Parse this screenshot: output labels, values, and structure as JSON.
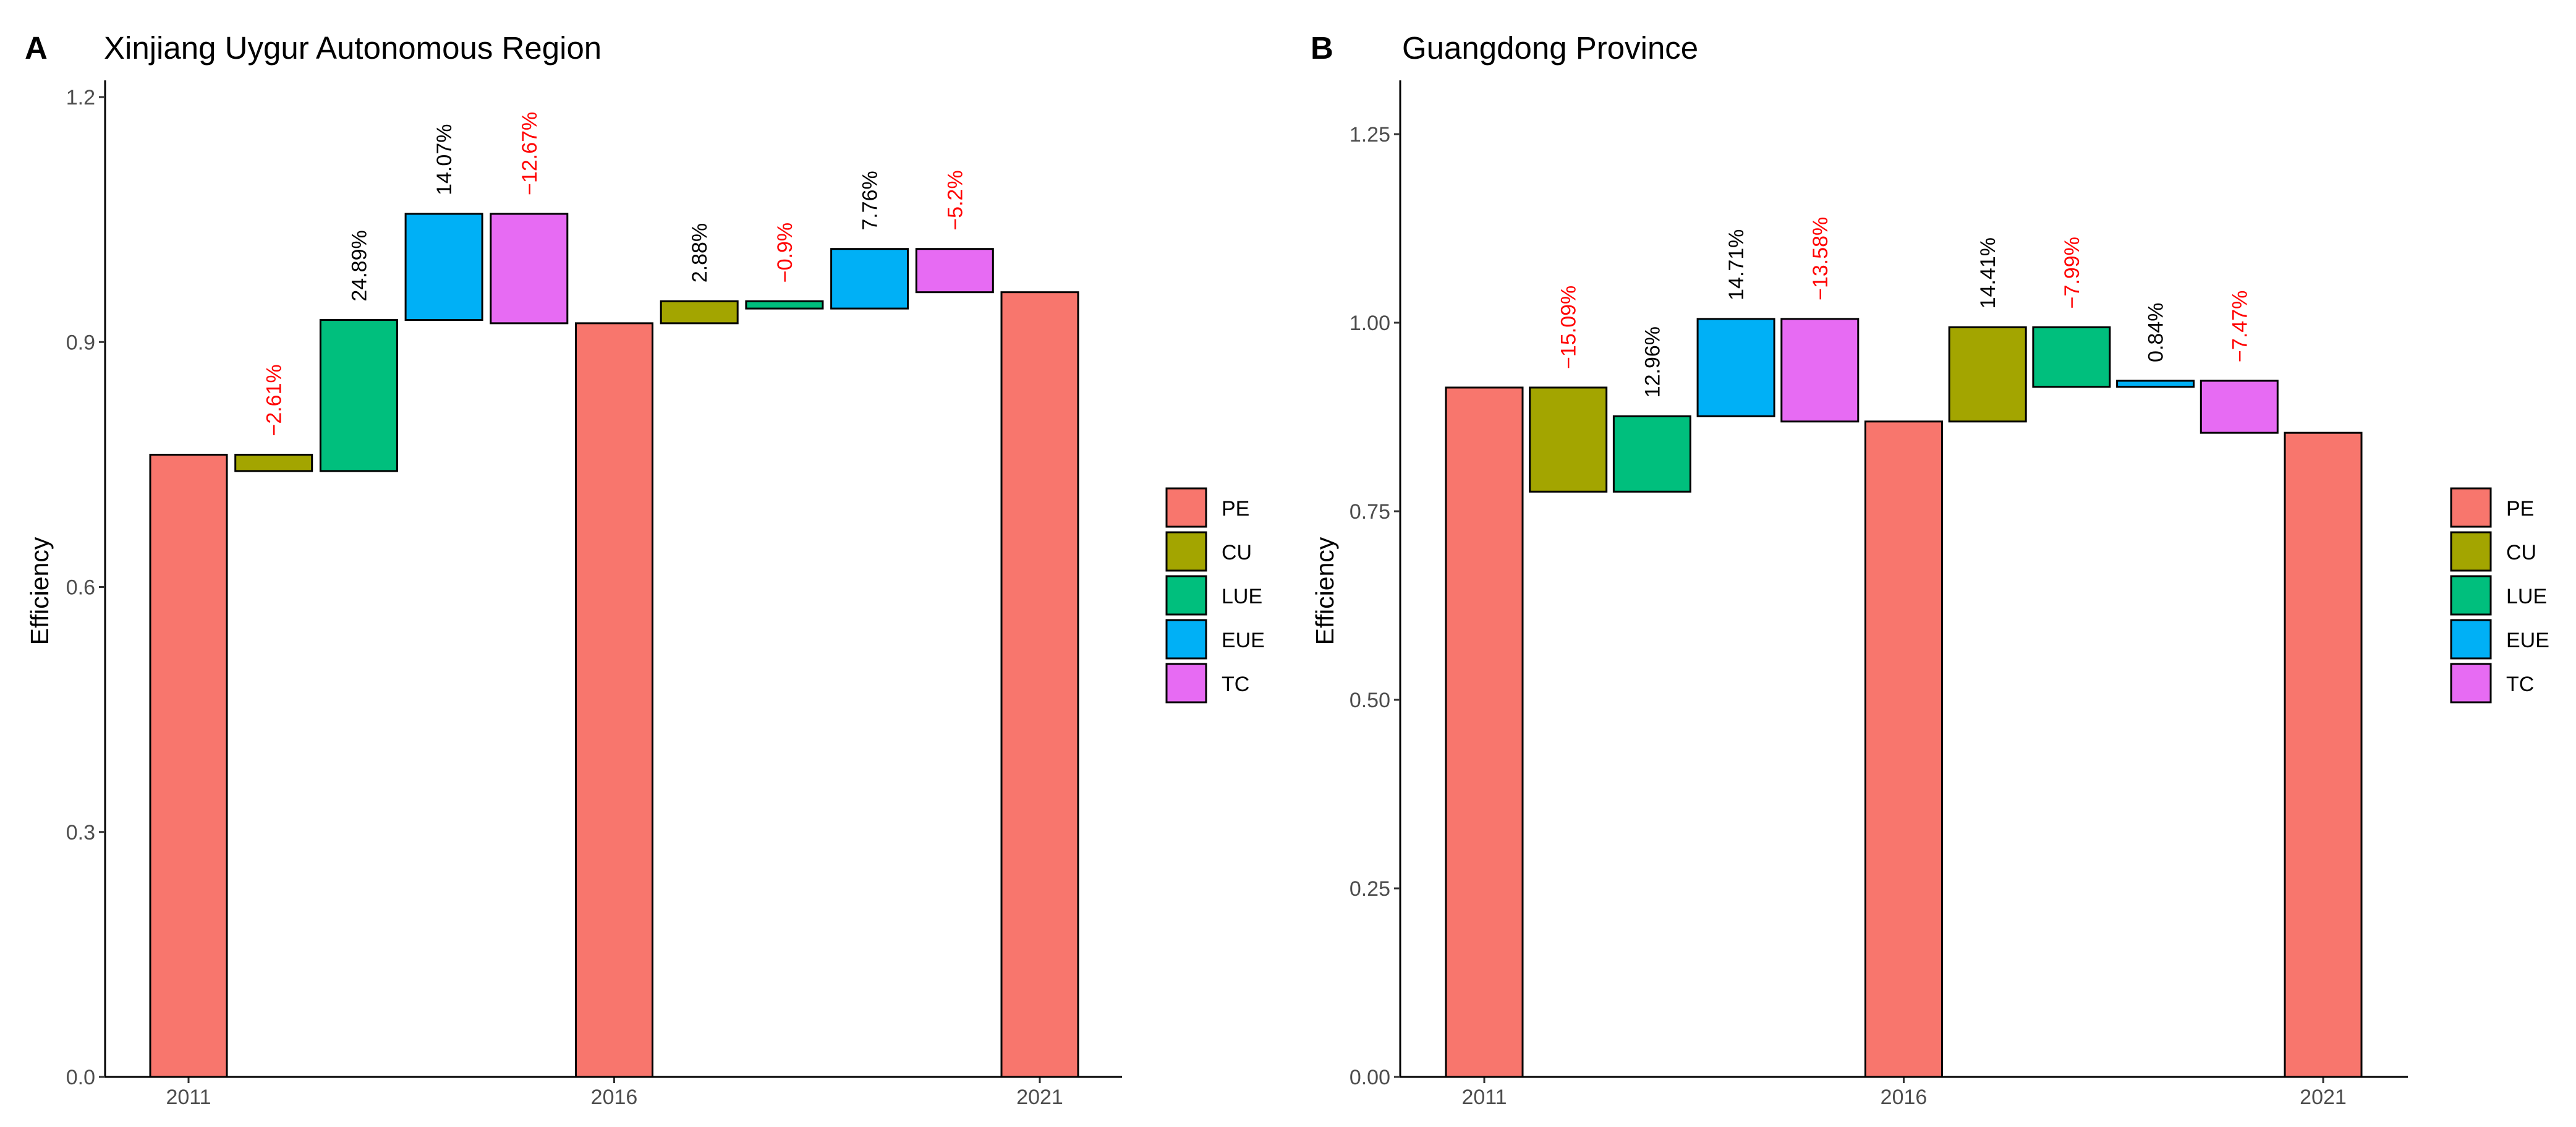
{
  "colors": {
    "PE": "#F8766D",
    "CU": "#A3A500",
    "LUE": "#00BF7D",
    "EUE": "#00B0F6",
    "TC": "#E76BF3",
    "positive_label": "#000000",
    "negative_label": "#FF0000"
  },
  "legend": [
    "PE",
    "CU",
    "LUE",
    "EUE",
    "TC"
  ],
  "chart_data": [
    {
      "panel": "A",
      "title": "Xinjiang Uygur Autonomous Region",
      "type": "bar",
      "subtype": "waterfall",
      "ylabel": "Efficiency",
      "xlabel": "",
      "ylim": [
        0,
        1.2
      ],
      "yticks": [
        "0.0",
        "0.3",
        "0.6",
        "0.9",
        "1.2"
      ],
      "xticks": [
        "2011",
        "2016",
        "2021"
      ],
      "legend_position": "right",
      "grid": false,
      "bars": [
        {
          "kind": "PE",
          "x": 1,
          "start": 0,
          "end": 0.762,
          "label": ""
        },
        {
          "kind": "CU",
          "x": 2,
          "start": 0.762,
          "end": 0.742,
          "label": "−2.61%"
        },
        {
          "kind": "LUE",
          "x": 3,
          "start": 0.742,
          "end": 0.927,
          "label": "24.89%"
        },
        {
          "kind": "EUE",
          "x": 4,
          "start": 0.927,
          "end": 1.057,
          "label": "14.07%"
        },
        {
          "kind": "TC",
          "x": 5,
          "start": 1.057,
          "end": 0.923,
          "label": "−12.67%"
        },
        {
          "kind": "PE",
          "x": 6,
          "start": 0,
          "end": 0.923,
          "label": ""
        },
        {
          "kind": "CU",
          "x": 7,
          "start": 0.923,
          "end": 0.95,
          "label": "2.88%"
        },
        {
          "kind": "LUE",
          "x": 8,
          "start": 0.95,
          "end": 0.941,
          "label": "−0.9%"
        },
        {
          "kind": "EUE",
          "x": 9,
          "start": 0.941,
          "end": 1.014,
          "label": "7.76%"
        },
        {
          "kind": "TC",
          "x": 10,
          "start": 1.014,
          "end": 0.961,
          "label": "−5.2%"
        },
        {
          "kind": "PE",
          "x": 11,
          "start": 0,
          "end": 0.961,
          "label": ""
        }
      ]
    },
    {
      "panel": "B",
      "title": "Guangdong Province",
      "type": "bar",
      "subtype": "waterfall",
      "ylabel": "Efficiency",
      "xlabel": "",
      "ylim": [
        0,
        1.3
      ],
      "yticks": [
        "0.00",
        "0.25",
        "0.50",
        "0.75",
        "1.00",
        "1.25"
      ],
      "xticks": [
        "2011",
        "2016",
        "2021"
      ],
      "legend_position": "right",
      "grid": false,
      "bars": [
        {
          "kind": "PE",
          "x": 1,
          "start": 0,
          "end": 0.914,
          "label": ""
        },
        {
          "kind": "CU",
          "x": 2,
          "start": 0.914,
          "end": 0.776,
          "label": "−15.09%"
        },
        {
          "kind": "LUE",
          "x": 3,
          "start": 0.776,
          "end": 0.876,
          "label": "12.96%"
        },
        {
          "kind": "EUE",
          "x": 4,
          "start": 0.876,
          "end": 1.005,
          "label": "14.71%"
        },
        {
          "kind": "TC",
          "x": 5,
          "start": 1.005,
          "end": 0.869,
          "label": "−13.58%"
        },
        {
          "kind": "PE",
          "x": 6,
          "start": 0,
          "end": 0.869,
          "label": ""
        },
        {
          "kind": "CU",
          "x": 7,
          "start": 0.869,
          "end": 0.994,
          "label": "14.41%"
        },
        {
          "kind": "LUE",
          "x": 8,
          "start": 0.994,
          "end": 0.915,
          "label": "−7.99%"
        },
        {
          "kind": "EUE",
          "x": 9,
          "start": 0.915,
          "end": 0.923,
          "label": "0.84%"
        },
        {
          "kind": "TC",
          "x": 10,
          "start": 0.923,
          "end": 0.854,
          "label": "−7.47%"
        },
        {
          "kind": "PE",
          "x": 11,
          "start": 0,
          "end": 0.854,
          "label": ""
        }
      ]
    }
  ]
}
